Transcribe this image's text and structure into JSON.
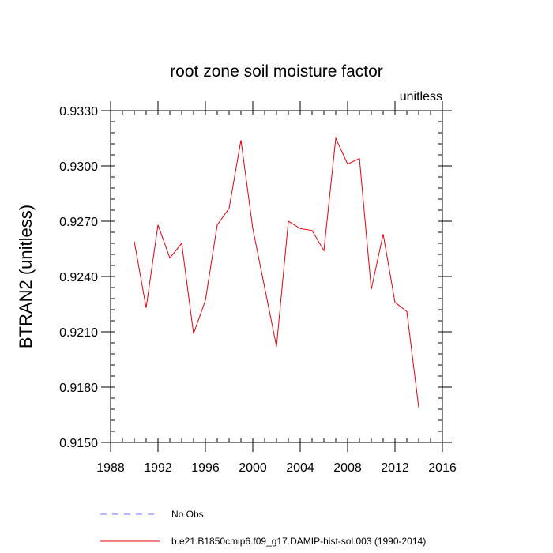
{
  "colors": {
    "model_line": "#e8000b",
    "obs_line": "#6f70ff",
    "axis": "#000000"
  },
  "chart_data": {
    "type": "line",
    "title": "root zone soil moisture factor",
    "units_label": "unitless",
    "xlabel": "",
    "ylabel": "BTRAN2  (unitless)",
    "xlim": [
      1988,
      2016
    ],
    "ylim": [
      0.915,
      0.933
    ],
    "x_ticks": [
      {
        "value": 1988,
        "label": "1988"
      },
      {
        "value": 1992,
        "label": "1992"
      },
      {
        "value": 1996,
        "label": "1996"
      },
      {
        "value": 2000,
        "label": "2000"
      },
      {
        "value": 2004,
        "label": "2004"
      },
      {
        "value": 2008,
        "label": "2008"
      },
      {
        "value": 2012,
        "label": "2012"
      },
      {
        "value": 2016,
        "label": "2016"
      }
    ],
    "y_ticks": [
      {
        "value": 0.915,
        "label": "0.9150"
      },
      {
        "value": 0.918,
        "label": "0.9180"
      },
      {
        "value": 0.921,
        "label": "0.9210"
      },
      {
        "value": 0.924,
        "label": "0.9240"
      },
      {
        "value": 0.927,
        "label": "0.9270"
      },
      {
        "value": 0.93,
        "label": "0.9300"
      },
      {
        "value": 0.933,
        "label": "0.9330"
      }
    ],
    "x_minor_step": 1,
    "y_minor_step": 0.0006,
    "series": [
      {
        "name": "b.e21.B1850cmip6.f09_g17.DAMIP-hist-sol.003 (1990-2014)",
        "style": "solid",
        "x": [
          1990,
          1991,
          1992,
          1993,
          1994,
          1995,
          1996,
          1997,
          1998,
          1999,
          2000,
          2001,
          2002,
          2003,
          2004,
          2005,
          2006,
          2007,
          2008,
          2009,
          2010,
          2011,
          2012,
          2013,
          2014
        ],
        "y": [
          0.9259,
          0.9223,
          0.9268,
          0.925,
          0.9258,
          0.9209,
          0.9227,
          0.9268,
          0.9277,
          0.9314,
          0.9266,
          0.9234,
          0.9202,
          0.927,
          0.9266,
          0.9265,
          0.9254,
          0.9315,
          0.9301,
          0.9304,
          0.9233,
          0.9263,
          0.9226,
          0.9221,
          0.9169
        ]
      }
    ],
    "legend": [
      {
        "label": "No Obs",
        "style": "dashed",
        "color": "#6f70ff"
      },
      {
        "label": "b.e21.B1850cmip6.f09_g17.DAMIP-hist-sol.003 (1990-2014)",
        "style": "solid",
        "color": "#e8000b"
      }
    ]
  }
}
